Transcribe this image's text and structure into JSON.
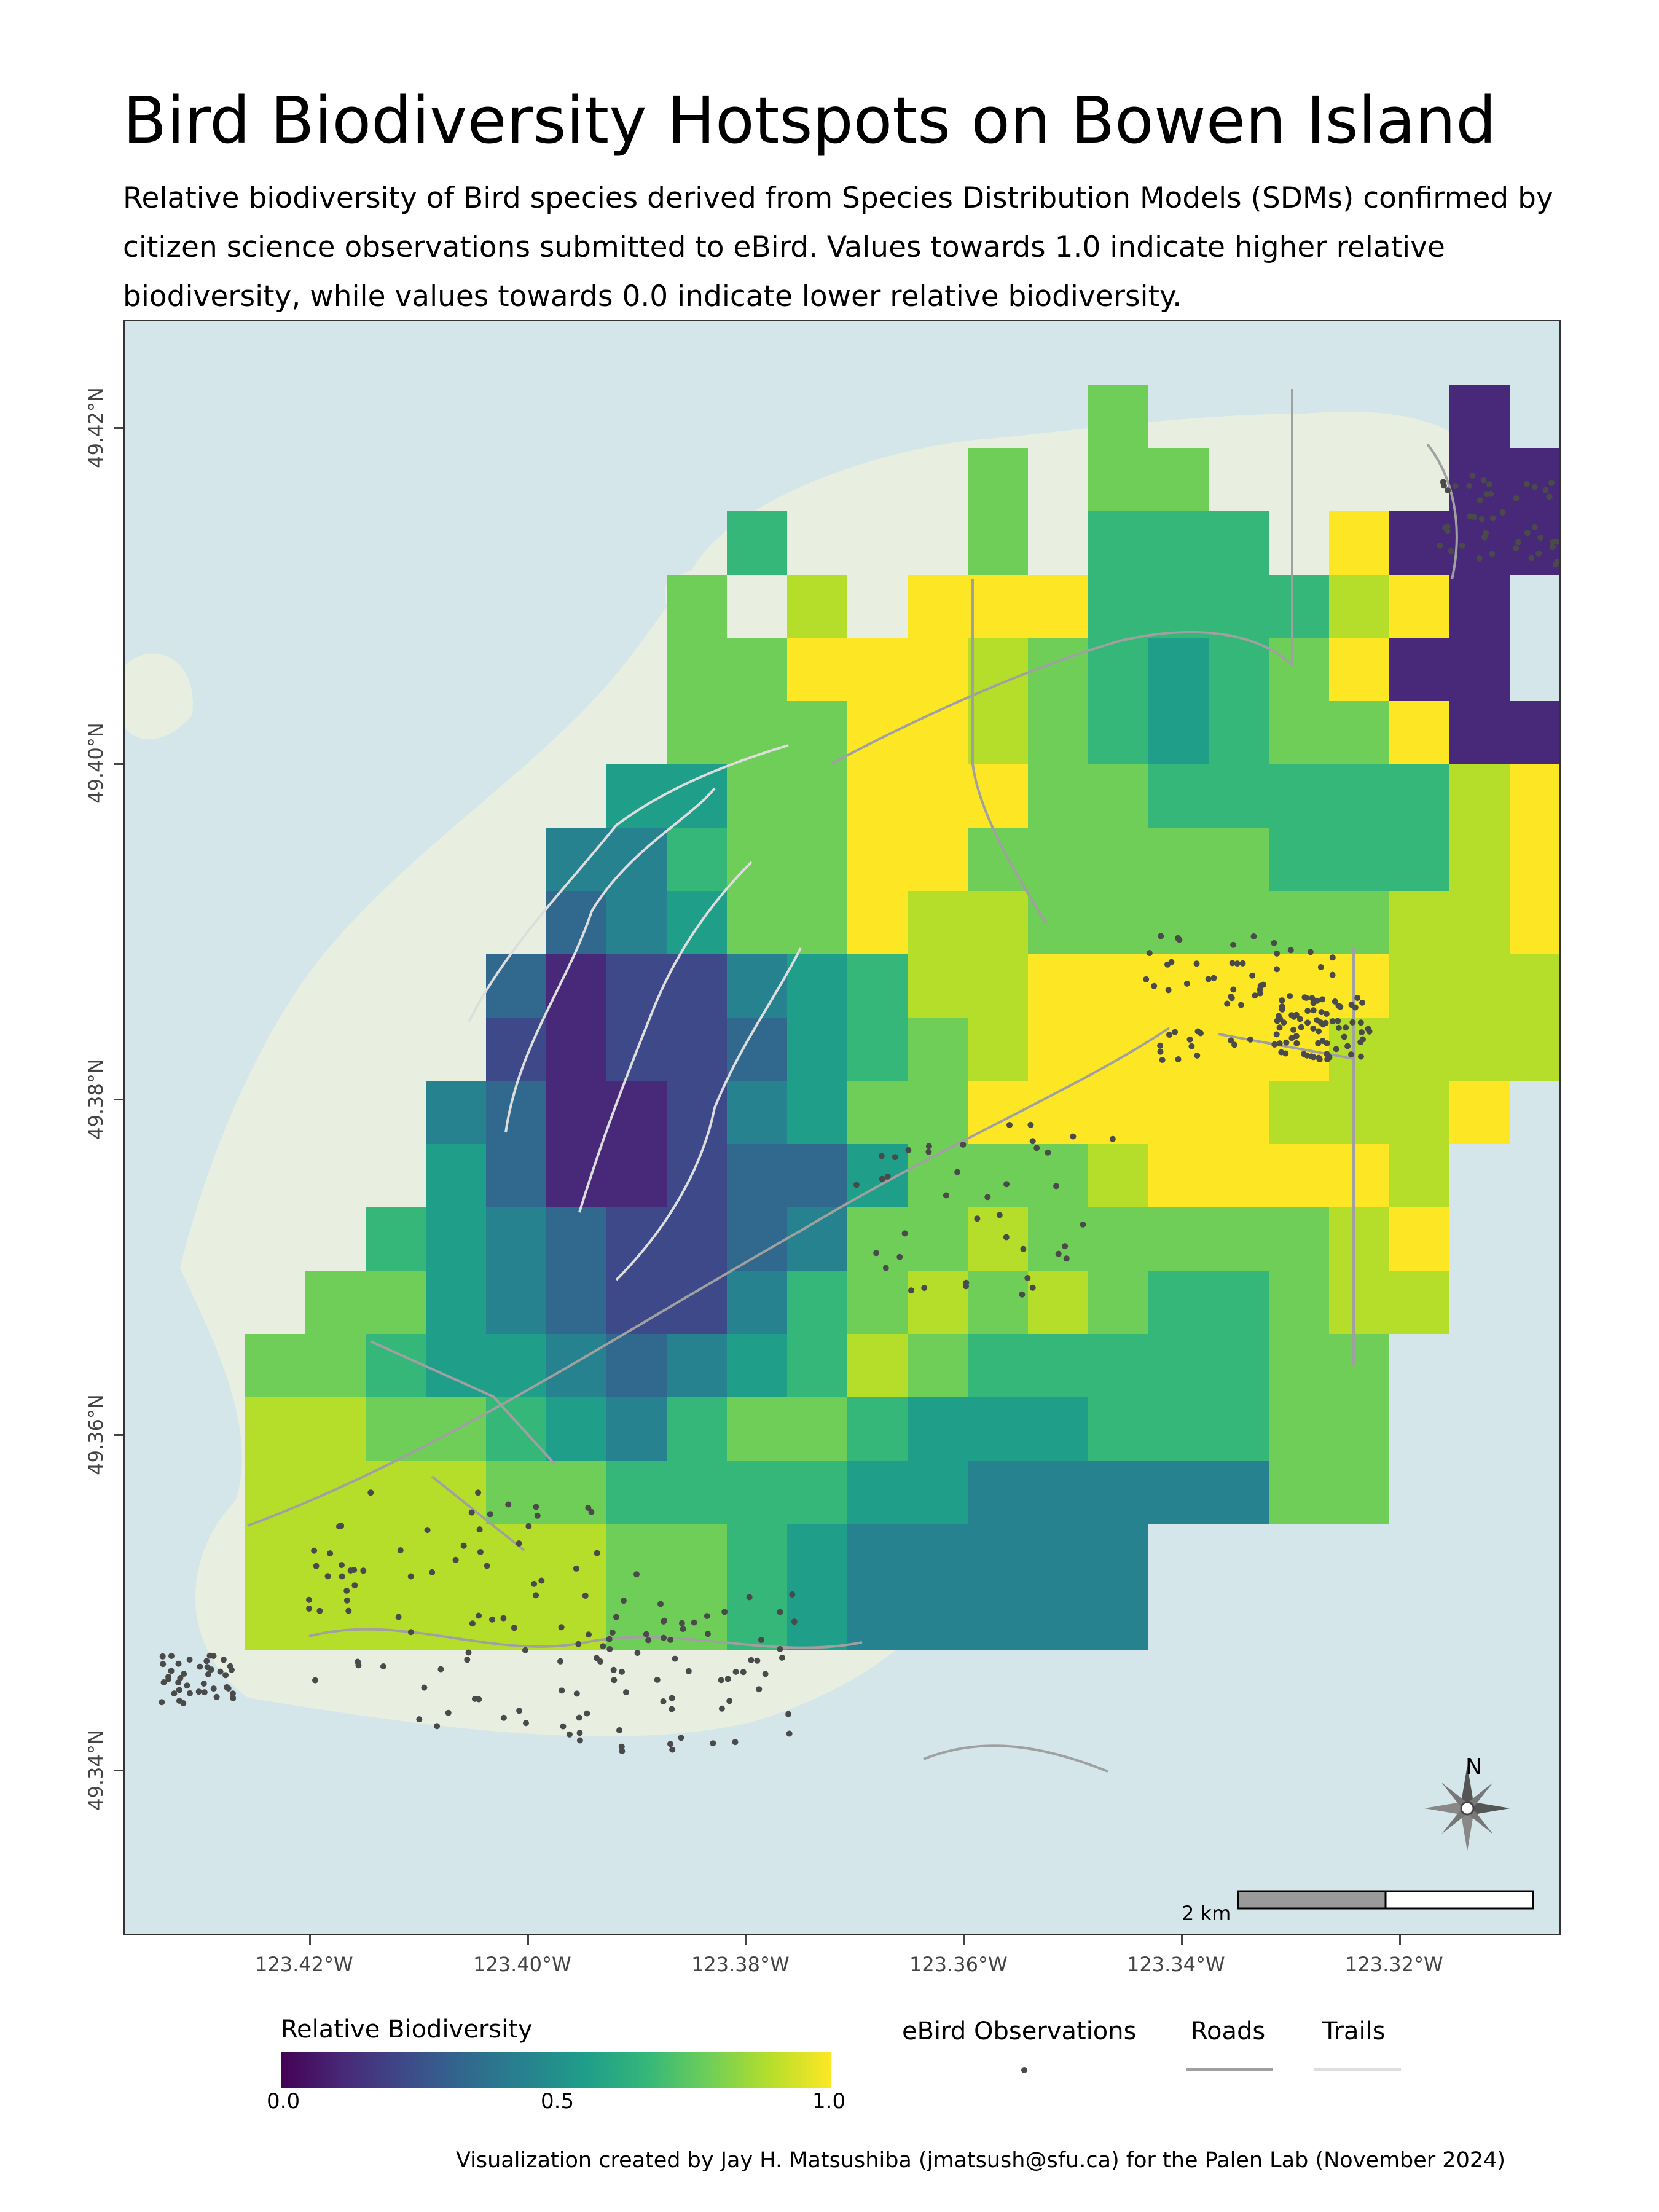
{
  "title": "Bird Biodiversity Hotspots on Bowen Island",
  "subtitle": "Relative biodiversity of Bird species derived from Species Distribution Models (SDMs) confirmed by citizen science observations submitted to eBird. Values towards 1.0 indicate higher relative biodiversity, while values towards 0.0 indicate lower relative biodiversity.",
  "axes": {
    "lat_labels": [
      "49.42°N",
      "49.40°N",
      "49.38°N",
      "49.36°N",
      "49.34°N"
    ],
    "lon_labels": [
      "123.42°W",
      "123.40°W",
      "123.38°W",
      "123.36°W",
      "123.34°W",
      "123.32°W"
    ]
  },
  "legend": {
    "biodiversity_title": "Relative Biodiversity",
    "biodiversity_ticks": [
      "0.0",
      "0.5",
      "1.0"
    ],
    "observations_label": "eBird Observations",
    "roads_label": "Roads",
    "trails_label": "Trails"
  },
  "scale_bar": {
    "label": "2 km"
  },
  "north_arrow": {
    "label": "N"
  },
  "credit": "Visualization created by Jay H. Matsushiba (jmatsush@sfu.ca) for the Palen Lab (November 2024)",
  "colors": {
    "water": "#d4e6ea",
    "land": "#e8efe0",
    "roads": "#a0a0a0",
    "trails": "#dddddd",
    "observations": "#4a4a4a",
    "viridis_low": "#440154",
    "viridis_mid": "#21918c",
    "viridis_high": "#fde725"
  },
  "biodiversity_grid": {
    "cols": 24,
    "rows": 21,
    "values": [
      "........................",
      "................7.....1.",
      "..............7.77....11",
      "..........6...7.666.9111",
      ".........7.8.9996666891.",
      ".........77999876567911.",
      ".........777998765677911",
      "........5577999776666689",
      ".......44677997777766689",
      ".......34577988777777889",
      "......312245688999999888",
      "......212235678999998888",
      ".....431124577999998889.",
      ".....53112335777899998..",
      "....654322347787777789..",
      "...7754322467878766788..",
      "..7765543456876666677...",
      "..8877654677655566677...",
      "..8888776666554444477...",
      "..888888776544444.......",
      "..888888776544444......."
    ]
  }
}
